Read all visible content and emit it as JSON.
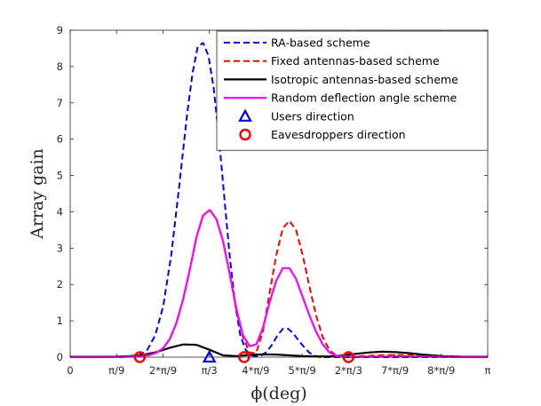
{
  "chart_data": {
    "type": "line",
    "title": "",
    "xlabel": "ϕ(deg)",
    "ylabel": "Array gain",
    "xlim": [
      0,
      3.14159
    ],
    "ylim": [
      0,
      9
    ],
    "grid": false,
    "legend_position": "top-right",
    "x_ticks": [
      {
        "value": 0,
        "label": "0"
      },
      {
        "value": 0.3491,
        "label": "π/9"
      },
      {
        "value": 0.6981,
        "label": "2*π/9"
      },
      {
        "value": 1.0472,
        "label": "π/3"
      },
      {
        "value": 1.3963,
        "label": "4*π/9"
      },
      {
        "value": 1.7453,
        "label": "5*π/9"
      },
      {
        "value": 2.0944,
        "label": "2*π/3"
      },
      {
        "value": 2.4435,
        "label": "7*π/9"
      },
      {
        "value": 2.7925,
        "label": "8*π/9"
      },
      {
        "value": 3.1416,
        "label": "π"
      }
    ],
    "y_ticks": [
      {
        "value": 0,
        "label": "0"
      },
      {
        "value": 1,
        "label": "1"
      },
      {
        "value": 2,
        "label": "2"
      },
      {
        "value": 3,
        "label": "3"
      },
      {
        "value": 4,
        "label": "4"
      },
      {
        "value": 5,
        "label": "5"
      },
      {
        "value": 6,
        "label": "6"
      },
      {
        "value": 7,
        "label": "7"
      },
      {
        "value": 8,
        "label": "8"
      },
      {
        "value": 9,
        "label": "9"
      }
    ],
    "series": [
      {
        "name": "RA-based scheme",
        "color": "#0000ff",
        "style": "dashed",
        "x": [
          0,
          0.3,
          0.45,
          0.52,
          0.58,
          0.64,
          0.7,
          0.76,
          0.82,
          0.88,
          0.92,
          0.96,
          1.0,
          1.04,
          1.08,
          1.12,
          1.16,
          1.2,
          1.24,
          1.28,
          1.32,
          1.36,
          1.4,
          1.44,
          1.48,
          1.52,
          1.56,
          1.6,
          1.64,
          1.68,
          1.72,
          1.76,
          1.8,
          1.84,
          1.88,
          2.0,
          2.5,
          3.1416
        ],
        "y": [
          0,
          0,
          0.01,
          0.05,
          0.2,
          0.6,
          1.4,
          2.8,
          4.7,
          6.7,
          7.8,
          8.55,
          8.65,
          8.3,
          7.4,
          6.0,
          4.4,
          2.8,
          1.5,
          0.6,
          0.2,
          0.05,
          0.02,
          0.05,
          0.15,
          0.35,
          0.6,
          0.78,
          0.78,
          0.65,
          0.45,
          0.28,
          0.12,
          0.04,
          0,
          0,
          0,
          0
        ]
      },
      {
        "name": "Fixed antennas-based scheme",
        "color": "#ff0000",
        "style": "dashed",
        "x": [
          0,
          0.2,
          0.4,
          0.5,
          0.55,
          0.6,
          0.65,
          0.7,
          0.75,
          0.8,
          0.85,
          0.9,
          0.95,
          1.0,
          1.05,
          1.1,
          1.15,
          1.2,
          1.25,
          1.3,
          1.35,
          1.4,
          1.45,
          1.5,
          1.55,
          1.6,
          1.65,
          1.7,
          1.75,
          1.8,
          1.85,
          1.9,
          1.95,
          2.0,
          2.05,
          2.1,
          2.2,
          2.3,
          2.45,
          2.6,
          2.8,
          3.0,
          3.1416
        ],
        "y": [
          0,
          0,
          0.01,
          0.02,
          0.03,
          0.06,
          0.12,
          0.25,
          0.5,
          0.95,
          1.6,
          2.4,
          3.3,
          3.9,
          4.05,
          3.8,
          3.2,
          2.3,
          1.3,
          0.55,
          0.12,
          0.12,
          0.7,
          1.75,
          2.8,
          3.55,
          3.75,
          3.5,
          2.8,
          1.95,
          1.15,
          0.55,
          0.2,
          0.05,
          0.01,
          0.01,
          0.03,
          0.05,
          0.06,
          0.05,
          0.03,
          0.01,
          0
        ]
      },
      {
        "name": "Isotropic antennas-based scheme",
        "color": "#000000",
        "style": "solid",
        "x": [
          0,
          0.2,
          0.35,
          0.45,
          0.55,
          0.65,
          0.75,
          0.85,
          0.95,
          1.05,
          1.15,
          1.25,
          1.35,
          1.45,
          1.55,
          1.65,
          1.75,
          1.85,
          1.95,
          2.05,
          2.15,
          2.25,
          2.35,
          2.45,
          2.55,
          2.65,
          2.8,
          2.95,
          3.1416
        ],
        "y": [
          0.01,
          0.01,
          0.015,
          0.03,
          0.06,
          0.14,
          0.26,
          0.35,
          0.34,
          0.2,
          0.05,
          0.03,
          0.06,
          0.075,
          0.07,
          0.05,
          0.03,
          0.02,
          0.02,
          0.05,
          0.09,
          0.13,
          0.15,
          0.14,
          0.11,
          0.07,
          0.03,
          0.01,
          0.01
        ]
      },
      {
        "name": "Random deflection angle scheme",
        "color": "#ff00ff",
        "style": "solid",
        "x": [
          0,
          0.2,
          0.4,
          0.5,
          0.55,
          0.6,
          0.65,
          0.7,
          0.75,
          0.8,
          0.85,
          0.9,
          0.95,
          1.0,
          1.05,
          1.1,
          1.15,
          1.2,
          1.25,
          1.3,
          1.35,
          1.4,
          1.45,
          1.5,
          1.55,
          1.6,
          1.65,
          1.7,
          1.75,
          1.8,
          1.85,
          1.9,
          1.95,
          2.0,
          2.1,
          2.2,
          2.4,
          2.6,
          2.8,
          3.0,
          3.1416
        ],
        "y": [
          0,
          0,
          0.01,
          0.02,
          0.03,
          0.06,
          0.12,
          0.25,
          0.5,
          0.95,
          1.6,
          2.4,
          3.3,
          3.9,
          4.05,
          3.8,
          3.2,
          2.3,
          1.35,
          0.6,
          0.3,
          0.35,
          0.8,
          1.5,
          2.1,
          2.45,
          2.45,
          2.15,
          1.65,
          1.15,
          0.7,
          0.35,
          0.13,
          0.04,
          0.01,
          0.01,
          0.02,
          0.02,
          0.01,
          0,
          0
        ]
      }
    ],
    "markers": [
      {
        "name": "Users direction",
        "color": "#0000ff",
        "shape": "triangle",
        "x": [
          1.0472
        ],
        "y": [
          0
        ]
      },
      {
        "name": "Eavesdroppers direction",
        "color": "#ff0000",
        "shape": "circle",
        "x": [
          0.5236,
          1.309,
          2.0944
        ],
        "y": [
          0,
          0,
          0
        ]
      }
    ]
  }
}
